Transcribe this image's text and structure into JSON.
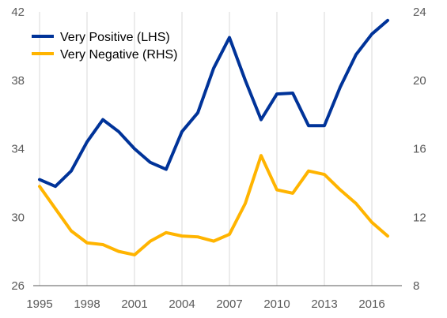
{
  "chart_data": {
    "type": "line",
    "x": [
      1995,
      1996,
      1997,
      1998,
      1999,
      2000,
      2001,
      2002,
      2003,
      2004,
      2005,
      2006,
      2007,
      2008,
      2009,
      2010,
      2011,
      2012,
      2013,
      2014,
      2015,
      2016,
      2017
    ],
    "x_ticks": [
      1995,
      1998,
      2001,
      2004,
      2007,
      2010,
      2013,
      2016
    ],
    "x_range": [
      1994.6,
      2017.9
    ],
    "left_axis": {
      "range": [
        26,
        42
      ],
      "ticks": [
        26,
        30,
        34,
        38,
        42
      ]
    },
    "right_axis": {
      "range": [
        8,
        24
      ],
      "ticks": [
        8,
        12,
        16,
        20,
        24
      ]
    },
    "grid": "vertical",
    "legend_position": "top-left",
    "series": [
      {
        "name": "Very Positive (LHS)",
        "axis": "left",
        "color": "#003399",
        "values": [
          32.2,
          31.8,
          32.7,
          34.4,
          35.7,
          35.0,
          34.0,
          33.2,
          32.8,
          35.0,
          36.1,
          38.7,
          40.5,
          38.0,
          35.7,
          37.2,
          37.25,
          35.35,
          35.35,
          37.6,
          39.5,
          40.7,
          41.5
        ]
      },
      {
        "name": "Very Negative (RHS)",
        "axis": "right",
        "color": "#FFB400",
        "values": [
          13.8,
          12.5,
          11.2,
          10.5,
          10.4,
          10.0,
          9.8,
          10.6,
          11.1,
          10.9,
          10.85,
          10.6,
          11.0,
          12.8,
          15.6,
          13.6,
          13.4,
          14.7,
          14.5,
          13.6,
          12.8,
          11.7,
          10.9
        ]
      }
    ]
  }
}
